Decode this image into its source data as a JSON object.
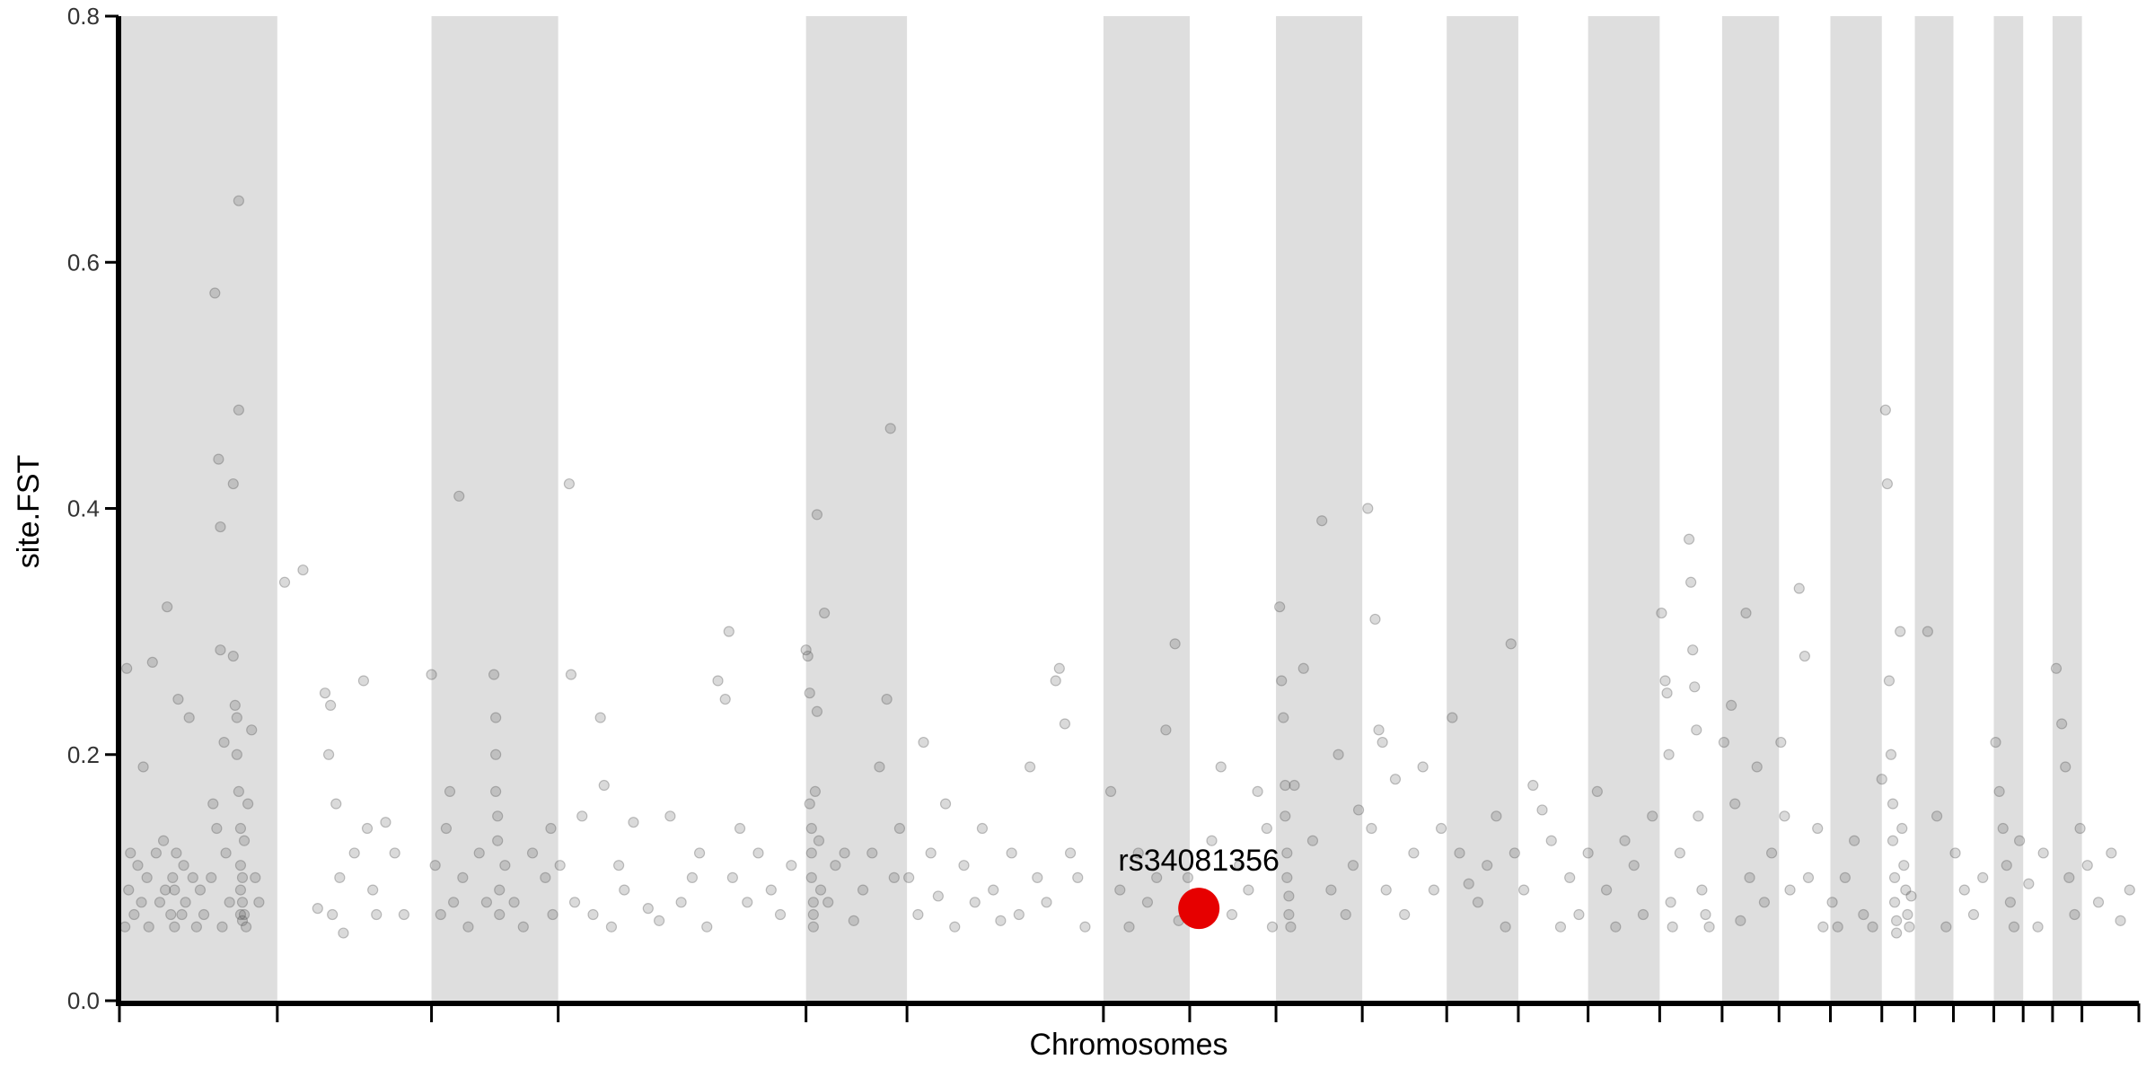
{
  "chart_data": {
    "type": "scatter",
    "title": "",
    "xlabel": "Chromosomes",
    "ylabel": "site.FST",
    "ylim": [
      0,
      0.8
    ],
    "y_ticks": [
      0.0,
      0.2,
      0.4,
      0.6,
      0.8
    ],
    "y_tick_labels": [
      "0.0",
      "0.2",
      "0.4",
      "0.6",
      "0.8"
    ],
    "x_tick_labels_shown": false,
    "band_color": "#dedede",
    "point_color": "#555555",
    "highlight_color": "#e60000",
    "chromosome_bounds": [
      0,
      0.086,
      0.17,
      0.239,
      0.374,
      0.429,
      0.536,
      0.583,
      0.63,
      0.677,
      0.723,
      0.762,
      0.8,
      0.839,
      0.873,
      0.904,
      0.932,
      0.96,
      0.978,
      0.999,
      1.021,
      1.037,
      1.053,
      1.069,
      1.1
    ],
    "highlight": {
      "x": 0.588,
      "y": 0.075,
      "label": "rs34081356"
    },
    "points": [
      [
        0.003,
        0.06
      ],
      [
        0.005,
        0.09
      ],
      [
        0.006,
        0.12
      ],
      [
        0.004,
        0.27
      ],
      [
        0.008,
        0.07
      ],
      [
        0.01,
        0.11
      ],
      [
        0.012,
        0.08
      ],
      [
        0.013,
        0.19
      ],
      [
        0.015,
        0.1
      ],
      [
        0.016,
        0.06
      ],
      [
        0.018,
        0.275
      ],
      [
        0.02,
        0.12
      ],
      [
        0.022,
        0.08
      ],
      [
        0.024,
        0.13
      ],
      [
        0.025,
        0.09
      ],
      [
        0.026,
        0.32
      ],
      [
        0.028,
        0.07
      ],
      [
        0.029,
        0.1
      ],
      [
        0.03,
        0.06
      ],
      [
        0.03,
        0.09
      ],
      [
        0.031,
        0.12
      ],
      [
        0.032,
        0.245
      ],
      [
        0.034,
        0.07
      ],
      [
        0.035,
        0.11
      ],
      [
        0.036,
        0.08
      ],
      [
        0.038,
        0.23
      ],
      [
        0.04,
        0.1
      ],
      [
        0.042,
        0.06
      ],
      [
        0.044,
        0.09
      ],
      [
        0.046,
        0.07
      ],
      [
        0.05,
        0.1
      ],
      [
        0.051,
        0.16
      ],
      [
        0.052,
        0.575
      ],
      [
        0.053,
        0.14
      ],
      [
        0.054,
        0.44
      ],
      [
        0.055,
        0.385
      ],
      [
        0.055,
        0.285
      ],
      [
        0.056,
        0.06
      ],
      [
        0.057,
        0.21
      ],
      [
        0.058,
        0.12
      ],
      [
        0.06,
        0.08
      ],
      [
        0.062,
        0.42
      ],
      [
        0.062,
        0.28
      ],
      [
        0.063,
        0.24
      ],
      [
        0.064,
        0.23
      ],
      [
        0.064,
        0.2
      ],
      [
        0.065,
        0.48
      ],
      [
        0.065,
        0.65
      ],
      [
        0.065,
        0.17
      ],
      [
        0.066,
        0.14
      ],
      [
        0.066,
        0.11
      ],
      [
        0.066,
        0.09
      ],
      [
        0.066,
        0.07
      ],
      [
        0.067,
        0.065
      ],
      [
        0.067,
        0.08
      ],
      [
        0.067,
        0.1
      ],
      [
        0.068,
        0.13
      ],
      [
        0.068,
        0.07
      ],
      [
        0.069,
        0.06
      ],
      [
        0.07,
        0.16
      ],
      [
        0.072,
        0.22
      ],
      [
        0.074,
        0.1
      ],
      [
        0.076,
        0.08
      ],
      [
        0.09,
        0.34
      ],
      [
        0.1,
        0.35
      ],
      [
        0.108,
        0.075
      ],
      [
        0.112,
        0.25
      ],
      [
        0.114,
        0.2
      ],
      [
        0.115,
        0.24
      ],
      [
        0.116,
        0.07
      ],
      [
        0.118,
        0.16
      ],
      [
        0.12,
        0.1
      ],
      [
        0.122,
        0.055
      ],
      [
        0.128,
        0.12
      ],
      [
        0.133,
        0.26
      ],
      [
        0.135,
        0.14
      ],
      [
        0.138,
        0.09
      ],
      [
        0.14,
        0.07
      ],
      [
        0.145,
        0.145
      ],
      [
        0.15,
        0.12
      ],
      [
        0.155,
        0.07
      ],
      [
        0.17,
        0.265
      ],
      [
        0.172,
        0.11
      ],
      [
        0.175,
        0.07
      ],
      [
        0.178,
        0.14
      ],
      [
        0.18,
        0.17
      ],
      [
        0.182,
        0.08
      ],
      [
        0.185,
        0.41
      ],
      [
        0.187,
        0.1
      ],
      [
        0.19,
        0.06
      ],
      [
        0.196,
        0.12
      ],
      [
        0.2,
        0.08
      ],
      [
        0.204,
        0.265
      ],
      [
        0.205,
        0.23
      ],
      [
        0.205,
        0.2
      ],
      [
        0.205,
        0.17
      ],
      [
        0.206,
        0.15
      ],
      [
        0.206,
        0.13
      ],
      [
        0.207,
        0.09
      ],
      [
        0.207,
        0.07
      ],
      [
        0.21,
        0.11
      ],
      [
        0.215,
        0.08
      ],
      [
        0.22,
        0.06
      ],
      [
        0.225,
        0.12
      ],
      [
        0.232,
        0.1
      ],
      [
        0.235,
        0.14
      ],
      [
        0.236,
        0.07
      ],
      [
        0.24,
        0.11
      ],
      [
        0.245,
        0.42
      ],
      [
        0.246,
        0.265
      ],
      [
        0.248,
        0.08
      ],
      [
        0.252,
        0.15
      ],
      [
        0.258,
        0.07
      ],
      [
        0.262,
        0.23
      ],
      [
        0.264,
        0.175
      ],
      [
        0.268,
        0.06
      ],
      [
        0.272,
        0.11
      ],
      [
        0.275,
        0.09
      ],
      [
        0.28,
        0.145
      ],
      [
        0.288,
        0.075
      ],
      [
        0.294,
        0.065
      ],
      [
        0.3,
        0.15
      ],
      [
        0.306,
        0.08
      ],
      [
        0.312,
        0.1
      ],
      [
        0.316,
        0.12
      ],
      [
        0.32,
        0.06
      ],
      [
        0.326,
        0.26
      ],
      [
        0.33,
        0.245
      ],
      [
        0.332,
        0.3
      ],
      [
        0.334,
        0.1
      ],
      [
        0.338,
        0.14
      ],
      [
        0.342,
        0.08
      ],
      [
        0.348,
        0.12
      ],
      [
        0.355,
        0.09
      ],
      [
        0.36,
        0.07
      ],
      [
        0.366,
        0.11
      ],
      [
        0.374,
        0.285
      ],
      [
        0.375,
        0.28
      ],
      [
        0.376,
        0.25
      ],
      [
        0.376,
        0.16
      ],
      [
        0.377,
        0.14
      ],
      [
        0.377,
        0.12
      ],
      [
        0.377,
        0.1
      ],
      [
        0.378,
        0.08
      ],
      [
        0.378,
        0.07
      ],
      [
        0.378,
        0.06
      ],
      [
        0.379,
        0.17
      ],
      [
        0.38,
        0.395
      ],
      [
        0.38,
        0.235
      ],
      [
        0.381,
        0.13
      ],
      [
        0.382,
        0.09
      ],
      [
        0.384,
        0.315
      ],
      [
        0.386,
        0.08
      ],
      [
        0.39,
        0.11
      ],
      [
        0.395,
        0.12
      ],
      [
        0.4,
        0.065
      ],
      [
        0.405,
        0.09
      ],
      [
        0.41,
        0.12
      ],
      [
        0.414,
        0.19
      ],
      [
        0.418,
        0.245
      ],
      [
        0.42,
        0.465
      ],
      [
        0.422,
        0.1
      ],
      [
        0.425,
        0.14
      ],
      [
        0.43,
        0.1
      ],
      [
        0.435,
        0.07
      ],
      [
        0.438,
        0.21
      ],
      [
        0.442,
        0.12
      ],
      [
        0.446,
        0.085
      ],
      [
        0.45,
        0.16
      ],
      [
        0.455,
        0.06
      ],
      [
        0.46,
        0.11
      ],
      [
        0.466,
        0.08
      ],
      [
        0.47,
        0.14
      ],
      [
        0.476,
        0.09
      ],
      [
        0.48,
        0.065
      ],
      [
        0.486,
        0.12
      ],
      [
        0.49,
        0.07
      ],
      [
        0.496,
        0.19
      ],
      [
        0.5,
        0.1
      ],
      [
        0.505,
        0.08
      ],
      [
        0.51,
        0.26
      ],
      [
        0.512,
        0.27
      ],
      [
        0.515,
        0.225
      ],
      [
        0.518,
        0.12
      ],
      [
        0.522,
        0.1
      ],
      [
        0.526,
        0.06
      ],
      [
        0.54,
        0.17
      ],
      [
        0.545,
        0.09
      ],
      [
        0.55,
        0.06
      ],
      [
        0.555,
        0.12
      ],
      [
        0.56,
        0.08
      ],
      [
        0.565,
        0.1
      ],
      [
        0.57,
        0.22
      ],
      [
        0.575,
        0.29
      ],
      [
        0.577,
        0.065
      ],
      [
        0.582,
        0.1
      ],
      [
        0.59,
        0.08
      ],
      [
        0.595,
        0.13
      ],
      [
        0.6,
        0.19
      ],
      [
        0.606,
        0.07
      ],
      [
        0.61,
        0.11
      ],
      [
        0.615,
        0.09
      ],
      [
        0.62,
        0.17
      ],
      [
        0.625,
        0.14
      ],
      [
        0.628,
        0.06
      ],
      [
        0.632,
        0.32
      ],
      [
        0.633,
        0.26
      ],
      [
        0.634,
        0.23
      ],
      [
        0.635,
        0.175
      ],
      [
        0.635,
        0.15
      ],
      [
        0.636,
        0.12
      ],
      [
        0.636,
        0.1
      ],
      [
        0.637,
        0.085
      ],
      [
        0.637,
        0.07
      ],
      [
        0.638,
        0.06
      ],
      [
        0.64,
        0.175
      ],
      [
        0.645,
        0.27
      ],
      [
        0.65,
        0.13
      ],
      [
        0.655,
        0.39
      ],
      [
        0.66,
        0.09
      ],
      [
        0.664,
        0.2
      ],
      [
        0.668,
        0.07
      ],
      [
        0.672,
        0.11
      ],
      [
        0.675,
        0.155
      ],
      [
        0.68,
        0.4
      ],
      [
        0.682,
        0.14
      ],
      [
        0.684,
        0.31
      ],
      [
        0.686,
        0.22
      ],
      [
        0.688,
        0.21
      ],
      [
        0.69,
        0.09
      ],
      [
        0.695,
        0.18
      ],
      [
        0.7,
        0.07
      ],
      [
        0.705,
        0.12
      ],
      [
        0.71,
        0.19
      ],
      [
        0.716,
        0.09
      ],
      [
        0.72,
        0.14
      ],
      [
        0.726,
        0.23
      ],
      [
        0.73,
        0.12
      ],
      [
        0.735,
        0.095
      ],
      [
        0.74,
        0.08
      ],
      [
        0.745,
        0.11
      ],
      [
        0.75,
        0.15
      ],
      [
        0.755,
        0.06
      ],
      [
        0.758,
        0.29
      ],
      [
        0.76,
        0.12
      ],
      [
        0.765,
        0.09
      ],
      [
        0.77,
        0.175
      ],
      [
        0.775,
        0.155
      ],
      [
        0.78,
        0.13
      ],
      [
        0.785,
        0.06
      ],
      [
        0.79,
        0.1
      ],
      [
        0.795,
        0.07
      ],
      [
        0.8,
        0.12
      ],
      [
        0.805,
        0.17
      ],
      [
        0.81,
        0.09
      ],
      [
        0.815,
        0.06
      ],
      [
        0.82,
        0.13
      ],
      [
        0.825,
        0.11
      ],
      [
        0.83,
        0.07
      ],
      [
        0.835,
        0.15
      ],
      [
        0.84,
        0.315
      ],
      [
        0.842,
        0.26
      ],
      [
        0.843,
        0.25
      ],
      [
        0.844,
        0.2
      ],
      [
        0.845,
        0.08
      ],
      [
        0.846,
        0.06
      ],
      [
        0.85,
        0.12
      ],
      [
        0.855,
        0.375
      ],
      [
        0.856,
        0.34
      ],
      [
        0.857,
        0.285
      ],
      [
        0.858,
        0.255
      ],
      [
        0.859,
        0.22
      ],
      [
        0.86,
        0.15
      ],
      [
        0.862,
        0.09
      ],
      [
        0.864,
        0.07
      ],
      [
        0.866,
        0.06
      ],
      [
        0.874,
        0.21
      ],
      [
        0.878,
        0.24
      ],
      [
        0.88,
        0.16
      ],
      [
        0.883,
        0.065
      ],
      [
        0.886,
        0.315
      ],
      [
        0.888,
        0.1
      ],
      [
        0.892,
        0.19
      ],
      [
        0.896,
        0.08
      ],
      [
        0.9,
        0.12
      ],
      [
        0.905,
        0.21
      ],
      [
        0.907,
        0.15
      ],
      [
        0.91,
        0.09
      ],
      [
        0.915,
        0.335
      ],
      [
        0.918,
        0.28
      ],
      [
        0.92,
        0.1
      ],
      [
        0.925,
        0.14
      ],
      [
        0.928,
        0.06
      ],
      [
        0.933,
        0.08
      ],
      [
        0.936,
        0.06
      ],
      [
        0.94,
        0.1
      ],
      [
        0.945,
        0.13
      ],
      [
        0.95,
        0.07
      ],
      [
        0.955,
        0.06
      ],
      [
        0.96,
        0.18
      ],
      [
        0.962,
        0.48
      ],
      [
        0.963,
        0.42
      ],
      [
        0.964,
        0.26
      ],
      [
        0.965,
        0.2
      ],
      [
        0.966,
        0.16
      ],
      [
        0.966,
        0.13
      ],
      [
        0.967,
        0.1
      ],
      [
        0.967,
        0.08
      ],
      [
        0.968,
        0.065
      ],
      [
        0.968,
        0.055
      ],
      [
        0.97,
        0.3
      ],
      [
        0.971,
        0.14
      ],
      [
        0.972,
        0.11
      ],
      [
        0.973,
        0.09
      ],
      [
        0.974,
        0.07
      ],
      [
        0.975,
        0.06
      ],
      [
        0.976,
        0.085
      ],
      [
        0.985,
        0.3
      ],
      [
        0.99,
        0.15
      ],
      [
        0.995,
        0.06
      ],
      [
        1.0,
        0.12
      ],
      [
        1.005,
        0.09
      ],
      [
        1.01,
        0.07
      ],
      [
        1.015,
        0.1
      ],
      [
        1.022,
        0.21
      ],
      [
        1.024,
        0.17
      ],
      [
        1.026,
        0.14
      ],
      [
        1.028,
        0.11
      ],
      [
        1.03,
        0.08
      ],
      [
        1.032,
        0.06
      ],
      [
        1.035,
        0.13
      ],
      [
        1.04,
        0.095
      ],
      [
        1.045,
        0.06
      ],
      [
        1.048,
        0.12
      ],
      [
        1.055,
        0.27
      ],
      [
        1.058,
        0.225
      ],
      [
        1.06,
        0.19
      ],
      [
        1.062,
        0.1
      ],
      [
        1.065,
        0.07
      ],
      [
        1.068,
        0.14
      ],
      [
        1.072,
        0.11
      ],
      [
        1.078,
        0.08
      ],
      [
        1.085,
        0.12
      ],
      [
        1.09,
        0.065
      ],
      [
        1.095,
        0.09
      ]
    ]
  }
}
